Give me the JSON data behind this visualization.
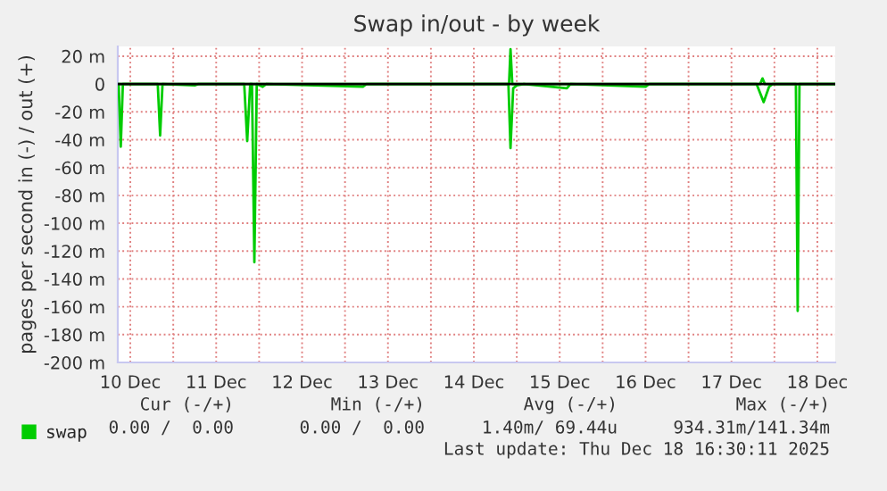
{
  "chart_data": {
    "type": "line",
    "title": "Swap in/out - by week",
    "ylabel": "pages per second in (-) / out (+)",
    "xlim": [
      "2025-12-10T08:30",
      "2025-12-18T17:00"
    ],
    "xticks": [
      {
        "value": "2025-12-10T12:00",
        "label": "10 Dec"
      },
      {
        "value": "2025-12-11T00:00",
        "label": null
      },
      {
        "value": "2025-12-11T12:00",
        "label": "11 Dec"
      },
      {
        "value": "2025-12-12T00:00",
        "label": null
      },
      {
        "value": "2025-12-12T12:00",
        "label": "12 Dec"
      },
      {
        "value": "2025-12-13T00:00",
        "label": null
      },
      {
        "value": "2025-12-13T12:00",
        "label": "13 Dec"
      },
      {
        "value": "2025-12-14T00:00",
        "label": null
      },
      {
        "value": "2025-12-14T12:00",
        "label": "14 Dec"
      },
      {
        "value": "2025-12-15T00:00",
        "label": null
      },
      {
        "value": "2025-12-15T12:00",
        "label": "15 Dec"
      },
      {
        "value": "2025-12-16T00:00",
        "label": null
      },
      {
        "value": "2025-12-16T12:00",
        "label": "16 Dec"
      },
      {
        "value": "2025-12-17T00:00",
        "label": null
      },
      {
        "value": "2025-12-17T12:00",
        "label": "17 Dec"
      },
      {
        "value": "2025-12-18T00:00",
        "label": null
      },
      {
        "value": "2025-12-18T12:00",
        "label": "18 Dec"
      }
    ],
    "ylim": [
      -200,
      27
    ],
    "yticks": [
      {
        "value": 20,
        "label": "20 m"
      },
      0,
      {
        "value": -20,
        "label": "-20 m"
      },
      {
        "value": -40,
        "label": "-40 m"
      },
      {
        "value": -60,
        "label": "-60 m"
      },
      {
        "value": -80,
        "label": "-80 m"
      },
      {
        "value": -100,
        "label": "-100 m"
      },
      {
        "value": -120,
        "label": "-120 m"
      },
      {
        "value": -140,
        "label": "-140 m"
      },
      {
        "value": -160,
        "label": "-160 m"
      },
      {
        "value": -180,
        "label": "-180 m"
      },
      {
        "value": -200,
        "label": "-200 m"
      }
    ],
    "grid": true,
    "legend": "bottom left",
    "ref_lines": [
      {
        "axis": "y",
        "value": 0,
        "color": "#000000"
      }
    ],
    "series": [
      {
        "name": "swap",
        "color": "#00cc00",
        "x": [
          "2025-12-10T08:45",
          "2025-12-10T09:20",
          "2025-12-10T09:55",
          "2025-12-10T19:40",
          "2025-12-10T20:20",
          "2025-12-10T21:00",
          "2025-12-11T06:00",
          "2025-12-11T07:00",
          "2025-12-11T19:50",
          "2025-12-11T20:40",
          "2025-12-11T21:30",
          "2025-12-11T22:00",
          "2025-12-11T22:40",
          "2025-12-11T23:20",
          "2025-12-12T01:00",
          "2025-12-12T02:00",
          "2025-12-13T05:00",
          "2025-12-13T06:00",
          "2025-12-14T21:40",
          "2025-12-14T22:15",
          "2025-12-14T23:00",
          "2025-12-15T00:00",
          "2025-12-15T02:00",
          "2025-12-15T14:00",
          "2025-12-15T15:00",
          "2025-12-16T12:00",
          "2025-12-16T13:00",
          "2025-12-17T19:00",
          "2025-12-17T21:00",
          "2025-12-17T22:30",
          "2025-12-17T23:30",
          "2025-12-18T06:00",
          "2025-12-18T06:30",
          "2025-12-18T07:00",
          "2025-12-18T17:00"
        ],
        "values": [
          0,
          -45,
          0,
          0,
          -37,
          0,
          -1,
          0,
          0,
          -41,
          0,
          0,
          -128,
          0,
          -2,
          0,
          -2,
          0,
          0,
          -46,
          -3,
          -1,
          0,
          -3,
          0,
          -2,
          0,
          0,
          -13,
          -2,
          0,
          0,
          -163,
          0,
          0
        ]
      },
      {
        "color": "#00cc00",
        "x": [
          "2025-12-10T08:45",
          "2025-12-14T21:50",
          "2025-12-14T22:15",
          "2025-12-14T22:45",
          "2025-12-17T20:00",
          "2025-12-17T20:40",
          "2025-12-17T21:20",
          "2025-12-18T17:00"
        ],
        "values": [
          0,
          0,
          25,
          0,
          0,
          4,
          0,
          0
        ]
      }
    ],
    "annotations": [
      "Cur (-/+)",
      "Min (-/+)",
      "Avg (-/+)",
      "Max (-/+)",
      "0.00 /  0.00",
      "0.00 /  0.00",
      "1.40m/ 69.44u",
      "934.31m/141.34m",
      "Last update: Thu Dec 18 16:30:11 2025"
    ]
  }
}
